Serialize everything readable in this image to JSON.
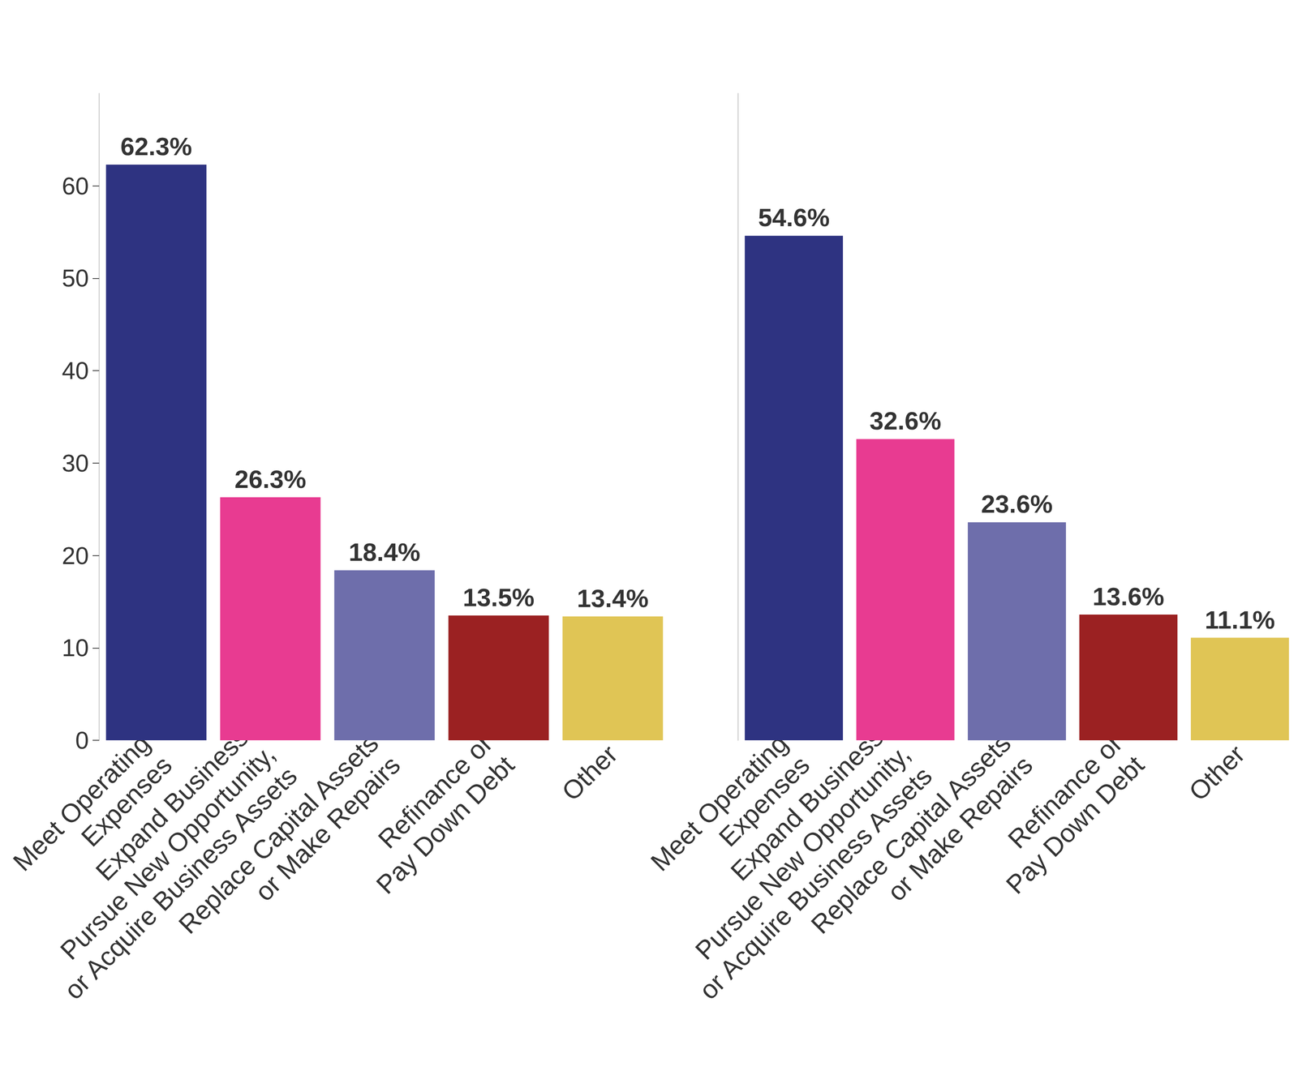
{
  "chart_data": [
    {
      "type": "bar",
      "categories": [
        "Meet Operating\nExpenses",
        "Expand Business,\nPursue New Opportunity,\nor Acquire Business Assets",
        "Replace Capital Assets\nor Make Repairs",
        "Refinance or\nPay Down Debt",
        "Other"
      ],
      "values": [
        62.3,
        26.3,
        18.4,
        13.5,
        13.4
      ],
      "value_labels": [
        "62.3%",
        "26.3%",
        "18.4%",
        "13.5%",
        "13.4%"
      ],
      "colors": [
        "#2e3381",
        "#e83b91",
        "#6e6eab",
        "#9b2122",
        "#e0c555"
      ],
      "ylim": [
        0,
        70
      ],
      "yticks": [
        0,
        10,
        20,
        30,
        40,
        50,
        60
      ],
      "grid": false,
      "data_labels": true
    },
    {
      "type": "bar",
      "categories": [
        "Meet Operating\nExpenses",
        "Expand Business,\nPursue New Opportunity,\nor Acquire Business Assets",
        "Replace Capital Assets\nor Make Repairs",
        "Refinance or\nPay Down Debt",
        "Other"
      ],
      "values": [
        54.6,
        32.6,
        23.6,
        13.6,
        11.1
      ],
      "value_labels": [
        "54.6%",
        "32.6%",
        "23.6%",
        "13.6%",
        "11.1%"
      ],
      "colors": [
        "#2e3381",
        "#e83b91",
        "#6e6eab",
        "#9b2122",
        "#e0c555"
      ],
      "ylim": [
        0,
        70
      ],
      "grid": false,
      "data_labels": true,
      "tick_labels": "x"
    }
  ]
}
